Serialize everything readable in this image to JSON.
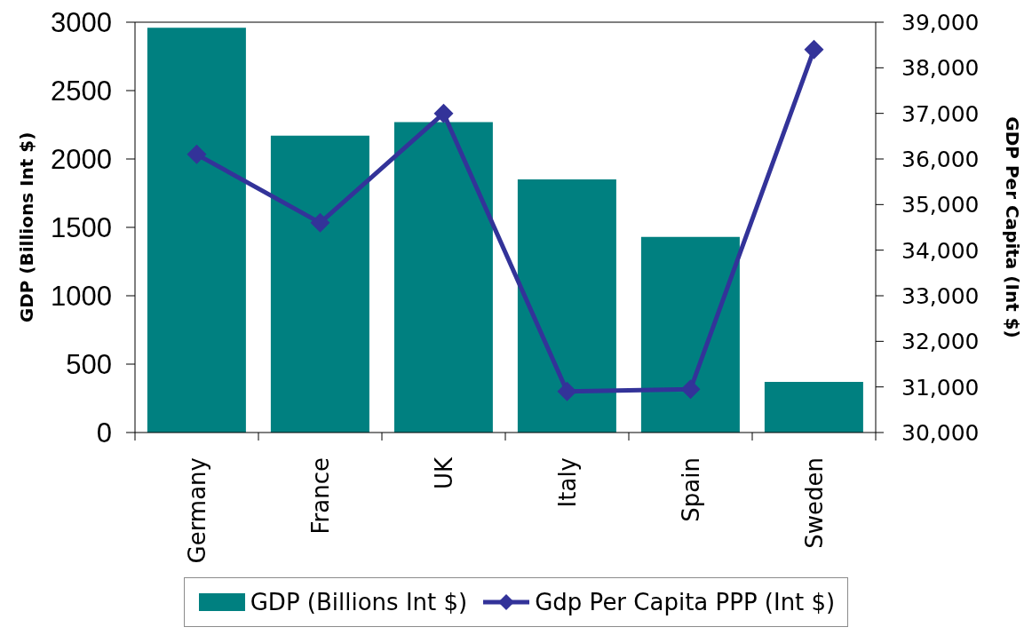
{
  "chart_data": {
    "type": "bar",
    "categories": [
      "Germany",
      "France",
      "UK",
      "Italy",
      "Spain",
      "Sweden"
    ],
    "ylabel": "GDP (Billions Int $)",
    "y2label": "GDP Per Capita (Int $)",
    "series": [
      {
        "name": "GDP (Billions Int $)",
        "color": "#008080",
        "values": [
          2960,
          2170,
          2270,
          1850,
          1430,
          370
        ]
      },
      {
        "name": "Gdp Per Capita PPP (Int $)",
        "type": "line",
        "axis": "y2",
        "color": "#333399",
        "values": [
          36100,
          34600,
          37000,
          30900,
          30950,
          38400
        ]
      }
    ],
    "ylim": [
      0,
      3000
    ],
    "yticks": [
      0,
      500,
      1000,
      1500,
      2000,
      2500,
      3000
    ],
    "y2lim": [
      30000,
      39000
    ],
    "y2ticks": [
      {
        "value": 30000,
        "label": "30,000"
      },
      {
        "value": 31000,
        "label": "31,000"
      },
      {
        "value": 32000,
        "label": "32,000"
      },
      {
        "value": 33000,
        "label": "33,000"
      },
      {
        "value": 34000,
        "label": "34,000"
      },
      {
        "value": 35000,
        "label": "35,000"
      },
      {
        "value": 36000,
        "label": "36,000"
      },
      {
        "value": 37000,
        "label": "37,000"
      },
      {
        "value": 38000,
        "label": "38,000"
      },
      {
        "value": 39000,
        "label": "39,000"
      }
    ],
    "legend": "bottom",
    "marker": "diamond",
    "line_style": "solid"
  }
}
